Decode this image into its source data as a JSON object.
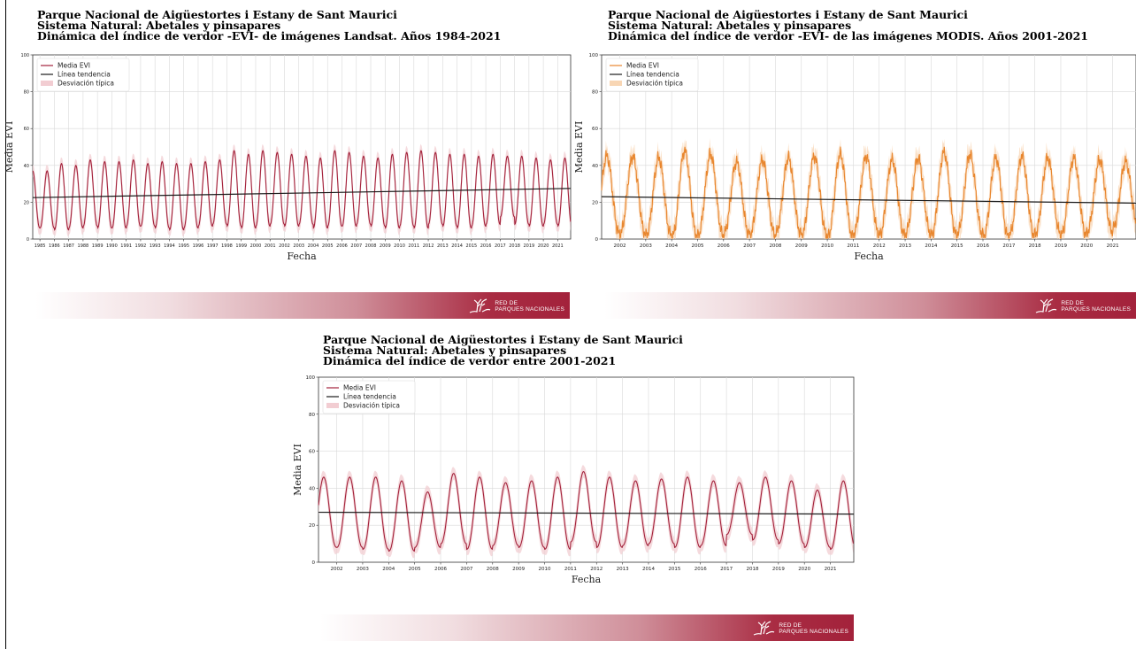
{
  "banner": {
    "logo_line1": "RED DE",
    "logo_line2": "PARQUES NACIONALES",
    "logo_icon": "stag-antlers-icon"
  },
  "chart_data": [
    {
      "type": "line",
      "title_lines": [
        "Parque Nacional de Aigüestortes i Estany de Sant Maurici",
        "Sistema Natural: Abetales y pinsapares",
        "Dinámica del índice de verdor -EVI- de imágenes Landsat. Años 1984-2021"
      ],
      "xlabel": "Fecha",
      "ylabel": "Media EVI",
      "xlim": [
        1984.5,
        2021.9
      ],
      "ylim": [
        0,
        100
      ],
      "yticks": [
        0,
        20,
        40,
        60,
        80,
        100
      ],
      "xticks": [
        1985,
        1986,
        1987,
        1988,
        1989,
        1990,
        1991,
        1992,
        1993,
        1994,
        1995,
        1996,
        1997,
        1998,
        1999,
        2000,
        2001,
        2002,
        2003,
        2004,
        2005,
        2006,
        2007,
        2008,
        2009,
        2010,
        2011,
        2012,
        2013,
        2014,
        2015,
        2016,
        2017,
        2018,
        2019,
        2020,
        2021
      ],
      "grid": true,
      "legend_position": "top-left",
      "legend": [
        "Media EVI",
        "Línea tendencia",
        "Desviación típica"
      ],
      "series": [
        {
          "name": "Media EVI",
          "kind": "seasonal-annual-cycle",
          "color": "#a3223b",
          "min_typical": 8,
          "peak_values": [
            37,
            41,
            40,
            43,
            42,
            42,
            43,
            41,
            42,
            41,
            41,
            42,
            43,
            48,
            46,
            48,
            47,
            46,
            45,
            44,
            48,
            47,
            45,
            44,
            46,
            47,
            48,
            47,
            46,
            46,
            45,
            46,
            45,
            45,
            44,
            43,
            44
          ],
          "trough_values": [
            6,
            5,
            6,
            7,
            6,
            6,
            7,
            7,
            6,
            5,
            6,
            7,
            8,
            7,
            6,
            7,
            8,
            7,
            8,
            6,
            7,
            7,
            8,
            7,
            6,
            7,
            6,
            8,
            7,
            6,
            7,
            8,
            12,
            8,
            7,
            8,
            7
          ]
        },
        {
          "name": "Línea tendencia",
          "kind": "linear",
          "color": "#1a1a1a",
          "x": [
            1984.5,
            2021.9
          ],
          "y": [
            22.5,
            27.5
          ]
        },
        {
          "name": "Desviación típica",
          "kind": "band",
          "color": "#f2cdd2",
          "spread": 6
        }
      ]
    },
    {
      "type": "line",
      "title_lines": [
        "Parque Nacional de Aigüestortes i Estany de Sant Maurici",
        "Sistema Natural: Abetales y pinsapares",
        "Dinámica del índice de verdor -EVI- de las imágenes MODIS. Años 2001-2021"
      ],
      "xlabel": "Fecha",
      "ylabel": "Media EVI",
      "xlim": [
        2001.3,
        2021.9
      ],
      "ylim": [
        0,
        100
      ],
      "yticks": [
        0,
        20,
        40,
        60,
        80,
        100
      ],
      "xticks": [
        2002,
        2003,
        2004,
        2005,
        2006,
        2007,
        2008,
        2009,
        2010,
        2011,
        2012,
        2013,
        2014,
        2015,
        2016,
        2017,
        2018,
        2019,
        2020,
        2021
      ],
      "grid": true,
      "legend_position": "top-left",
      "legend": [
        "Media EVI",
        "Línea tendencia",
        "Desviación típica"
      ],
      "series": [
        {
          "name": "Media EVI",
          "kind": "seasonal-annual-cycle-noisy",
          "color": "#e8862e",
          "peak_values": [
            45,
            44,
            48,
            46,
            42,
            43,
            44,
            45,
            46,
            45,
            43,
            44,
            47,
            46,
            44,
            45,
            44,
            44,
            43,
            42
          ],
          "trough_values": [
            3,
            2,
            1,
            2,
            3,
            2,
            3,
            2,
            1,
            3,
            2,
            3,
            2,
            3,
            1,
            2,
            3,
            2,
            4,
            6
          ]
        },
        {
          "name": "Línea tendencia",
          "kind": "linear",
          "color": "#1a1a1a",
          "x": [
            2001.3,
            2021.9
          ],
          "y": [
            23,
            19.5
          ]
        },
        {
          "name": "Desviación típica",
          "kind": "band",
          "color": "#f8d6b4",
          "spread": 8
        }
      ]
    },
    {
      "type": "line",
      "title_lines": [
        "Parque Nacional de Aigüestortes i Estany de Sant Maurici",
        "Sistema Natural: Abetales y pinsapares",
        "Dinámica del índice de verdor entre 2001-2021"
      ],
      "xlabel": "Fecha",
      "ylabel": "Media EVI",
      "xlim": [
        2001.3,
        2021.9
      ],
      "ylim": [
        0,
        100
      ],
      "yticks": [
        0,
        20,
        40,
        60,
        80,
        100
      ],
      "xticks": [
        2002,
        2003,
        2004,
        2005,
        2006,
        2007,
        2008,
        2009,
        2010,
        2011,
        2012,
        2013,
        2014,
        2015,
        2016,
        2017,
        2018,
        2019,
        2020,
        2021
      ],
      "grid": true,
      "legend_position": "top-left",
      "legend": [
        "Media EVI",
        "Línea tendencia",
        "Desviación típica"
      ],
      "series": [
        {
          "name": "Media EVI",
          "kind": "seasonal-annual-cycle",
          "color": "#a3223b",
          "peak_values": [
            46,
            46,
            44,
            38,
            48,
            46,
            43,
            44,
            46,
            49,
            46,
            44,
            45,
            46,
            44,
            43,
            46,
            44,
            39,
            44
          ],
          "trough_values": [
            8,
            7,
            6,
            8,
            10,
            7,
            9,
            8,
            7,
            11,
            8,
            9,
            10,
            8,
            9,
            15,
            12,
            10,
            8,
            7
          ]
        },
        {
          "name": "Línea tendencia",
          "kind": "linear",
          "color": "#1a1a1a",
          "x": [
            2001.3,
            2021.9
          ],
          "y": [
            27,
            26
          ]
        },
        {
          "name": "Desviación típica",
          "kind": "band",
          "color": "#f2cdd2",
          "spread": 6
        }
      ]
    }
  ]
}
